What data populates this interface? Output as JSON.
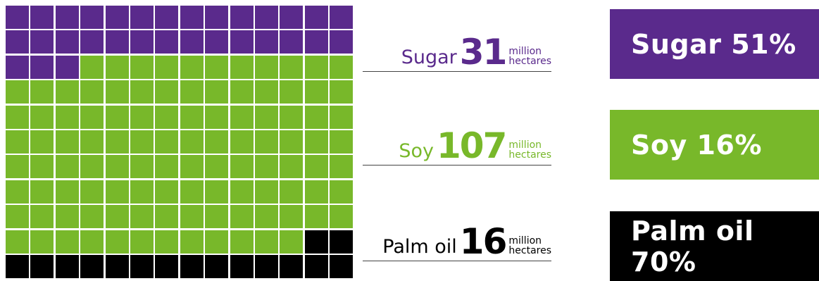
{
  "chart_data": {
    "type": "waffle",
    "grid": {
      "columns": 14,
      "rows": 11
    },
    "series": [
      {
        "name": "Sugar",
        "cells": 31,
        "value": 31,
        "unit_line1": "million",
        "unit_line2": "hectares",
        "share_label": "Sugar 51%",
        "share": 51,
        "color": "#5a2a8c"
      },
      {
        "name": "Soy",
        "cells": 107,
        "value": 107,
        "unit_line1": "million",
        "unit_line2": "hectares",
        "share_label": "Soy 16%",
        "share": 16,
        "color": "#78b82a"
      },
      {
        "name": "Palm oil",
        "cells": 16,
        "value": 16,
        "unit_line1": "million",
        "unit_line2": "hectares",
        "share_label": "Palm oil 70%",
        "share": 70,
        "color": "#000000"
      }
    ]
  },
  "labels": {
    "sugar": {
      "name": "Sugar",
      "value": "31",
      "unit1": "million",
      "unit2": "hectares"
    },
    "soy": {
      "name": "Soy",
      "value": "107",
      "unit1": "million",
      "unit2": "hectares"
    },
    "palm": {
      "name": "Palm oil",
      "value": "16",
      "unit1": "million",
      "unit2": "hectares"
    }
  },
  "boxes": {
    "sugar": "Sugar 51%",
    "soy": "Soy 16%",
    "palm": "Palm oil 70%"
  },
  "colors": {
    "sugar": "#5a2a8c",
    "soy": "#78b82a",
    "palm": "#000000"
  }
}
